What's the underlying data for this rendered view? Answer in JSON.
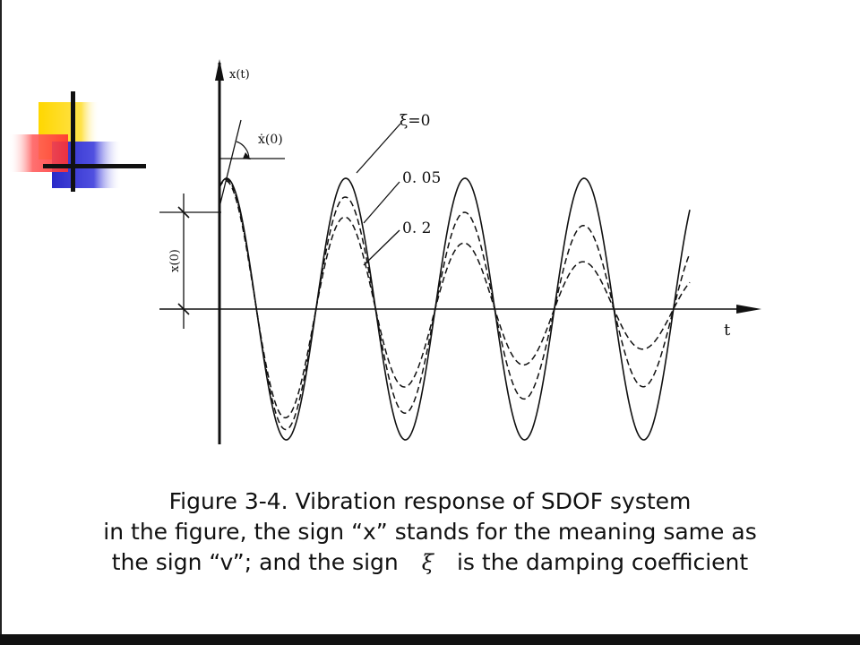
{
  "diagram": {
    "y_axis_label": "x(t)",
    "x_axis_label": "t",
    "initial_velocity_label": "ẋ(0)",
    "initial_displacement_label": "x(0)",
    "curve_labels": [
      "ξ=0",
      "0. 05",
      "0. 2"
    ]
  },
  "caption": {
    "line1": "Figure 3-4. Vibration response of SDOF system",
    "line2": "in the figure, the sign “x” stands for the meaning same as",
    "line3_before": "the sign “v”; and the sign",
    "line3_symbol": "ξ",
    "line3_after": "is the damping coefficient"
  },
  "colors": {
    "logo_yellow": "#FFD700",
    "logo_red": "#FF3030",
    "logo_blue": "#3030D0",
    "line": "#111111"
  }
}
